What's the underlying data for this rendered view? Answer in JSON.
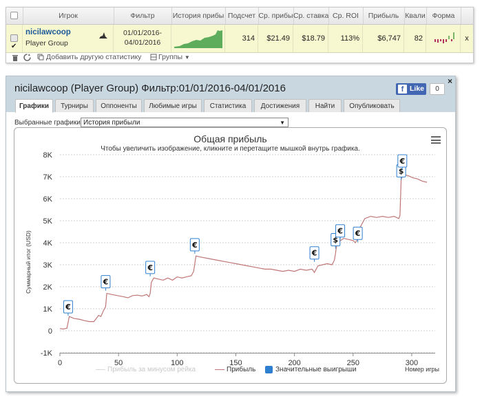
{
  "table": {
    "headers": [
      "Игрок",
      "Фильтр",
      "История прибы",
      "Подсчет",
      "Ср. прибы",
      "Ср. ставка",
      "Ср. ROI",
      "Прибыль",
      "Квали",
      "Форма"
    ],
    "row": {
      "player_name": "nicilawcoop",
      "group": "Player Group",
      "filter_from": "01/01/2016-",
      "filter_to": "04/01/2016",
      "count": "314",
      "avg_profit": "$21.49",
      "avg_stake": "$18.79",
      "avg_roi": "113%",
      "profit": "$6,747",
      "qualification": "82",
      "remove": "x"
    },
    "toolbar": {
      "add_stat": "Добавить другую статистику",
      "groups": "Группы"
    }
  },
  "panel": {
    "title": "nicilawcoop (Player Group) Фильтр:01/01/2016-04/01/2016",
    "close": "×",
    "like_label": "Like",
    "like_count": "0",
    "tabs": [
      "Графики",
      "Турниры",
      "Оппоненты",
      "Любимые игры",
      "Статистика",
      "Достижения",
      "Найти",
      "Опубликовать"
    ],
    "active_tab": "Графики",
    "select_label": "Выбранные графики:",
    "select_value": "История прибыли"
  },
  "chart_data": {
    "type": "line",
    "title": "Общая прибыль",
    "subtitle": "Чтобы увеличить изображение, кликните и перетащите мышкой внутрь графика.",
    "ylabel": "Суммарный итог (USD)",
    "xlabel": "Номер игры",
    "xlim": [
      0,
      320
    ],
    "ylim": [
      -1000,
      8000
    ],
    "xticks": [
      0,
      50,
      100,
      150,
      200,
      250,
      300
    ],
    "yticks": [
      -1000,
      0,
      1000,
      2000,
      3000,
      4000,
      5000,
      6000,
      7000,
      8000
    ],
    "ytick_labels": [
      "-1K",
      "0",
      "1K",
      "2K",
      "3K",
      "4K",
      "5K",
      "6K",
      "7K",
      "8K"
    ],
    "legend": [
      "Прибыль за минусом рейка",
      "Прибыль",
      "Значительные выигрыши"
    ],
    "colors": {
      "profit": "#c07676",
      "rake_line": "#d8d8d8",
      "big_wins": "#2f7fd1"
    },
    "series": [
      {
        "name": "Прибыль",
        "points": [
          [
            0,
            100
          ],
          [
            3,
            80
          ],
          [
            6,
            120
          ],
          [
            8,
            650
          ],
          [
            12,
            560
          ],
          [
            17,
            520
          ],
          [
            21,
            460
          ],
          [
            25,
            420
          ],
          [
            29,
            420
          ],
          [
            33,
            700
          ],
          [
            35,
            650
          ],
          [
            37,
            900
          ],
          [
            39,
            1100
          ],
          [
            40,
            1700
          ],
          [
            44,
            1650
          ],
          [
            49,
            1600
          ],
          [
            54,
            1550
          ],
          [
            58,
            1500
          ],
          [
            62,
            1600
          ],
          [
            66,
            1620
          ],
          [
            70,
            1580
          ],
          [
            74,
            1650
          ],
          [
            76,
            1550
          ],
          [
            77,
            1700
          ],
          [
            78,
            2200
          ],
          [
            80,
            2400
          ],
          [
            84,
            2350
          ],
          [
            88,
            2300
          ],
          [
            92,
            2400
          ],
          [
            96,
            2300
          ],
          [
            100,
            2450
          ],
          [
            104,
            2400
          ],
          [
            108,
            2450
          ],
          [
            112,
            2500
          ],
          [
            114,
            2700
          ],
          [
            116,
            3400
          ],
          [
            120,
            3350
          ],
          [
            125,
            3300
          ],
          [
            130,
            3250
          ],
          [
            135,
            3200
          ],
          [
            140,
            3150
          ],
          [
            145,
            3100
          ],
          [
            150,
            3050
          ],
          [
            155,
            3000
          ],
          [
            160,
            2950
          ],
          [
            165,
            2900
          ],
          [
            170,
            2850
          ],
          [
            175,
            2800
          ],
          [
            180,
            2800
          ],
          [
            185,
            2750
          ],
          [
            190,
            2700
          ],
          [
            195,
            2750
          ],
          [
            200,
            2700
          ],
          [
            205,
            2800
          ],
          [
            210,
            2750
          ],
          [
            215,
            2800
          ],
          [
            217,
            2650
          ],
          [
            220,
            2950
          ],
          [
            224,
            3000
          ],
          [
            228,
            3050
          ],
          [
            232,
            3000
          ],
          [
            234,
            3200
          ],
          [
            235,
            3500
          ],
          [
            236,
            3900
          ],
          [
            238,
            4050
          ],
          [
            242,
            4200
          ],
          [
            246,
            4150
          ],
          [
            250,
            4100
          ],
          [
            252,
            4000
          ],
          [
            254,
            4200
          ],
          [
            256,
            4700
          ],
          [
            260,
            5100
          ],
          [
            265,
            5200
          ],
          [
            270,
            5150
          ],
          [
            275,
            5200
          ],
          [
            280,
            5150
          ],
          [
            285,
            5200
          ],
          [
            289,
            5100
          ],
          [
            290,
            5250
          ],
          [
            291,
            6900
          ],
          [
            293,
            7100
          ],
          [
            297,
            7050
          ],
          [
            301,
            6950
          ],
          [
            305,
            6900
          ],
          [
            309,
            6800
          ],
          [
            313,
            6750
          ]
        ]
      }
    ],
    "markers": [
      {
        "x": 7,
        "y": 1090,
        "symbol": "€"
      },
      {
        "x": 39,
        "y": 2230,
        "symbol": "€"
      },
      {
        "x": 77,
        "y": 2880,
        "symbol": "€"
      },
      {
        "x": 115,
        "y": 3910,
        "symbol": "€"
      },
      {
        "x": 217,
        "y": 3540,
        "symbol": "€"
      },
      {
        "x": 235,
        "y": 4140,
        "symbol": "$"
      },
      {
        "x": 239,
        "y": 4540,
        "symbol": "€"
      },
      {
        "x": 254,
        "y": 4430,
        "symbol": "€"
      },
      {
        "x": 291,
        "y": 7270,
        "symbol": "$"
      },
      {
        "x": 292,
        "y": 7720,
        "symbol": "€"
      }
    ]
  }
}
